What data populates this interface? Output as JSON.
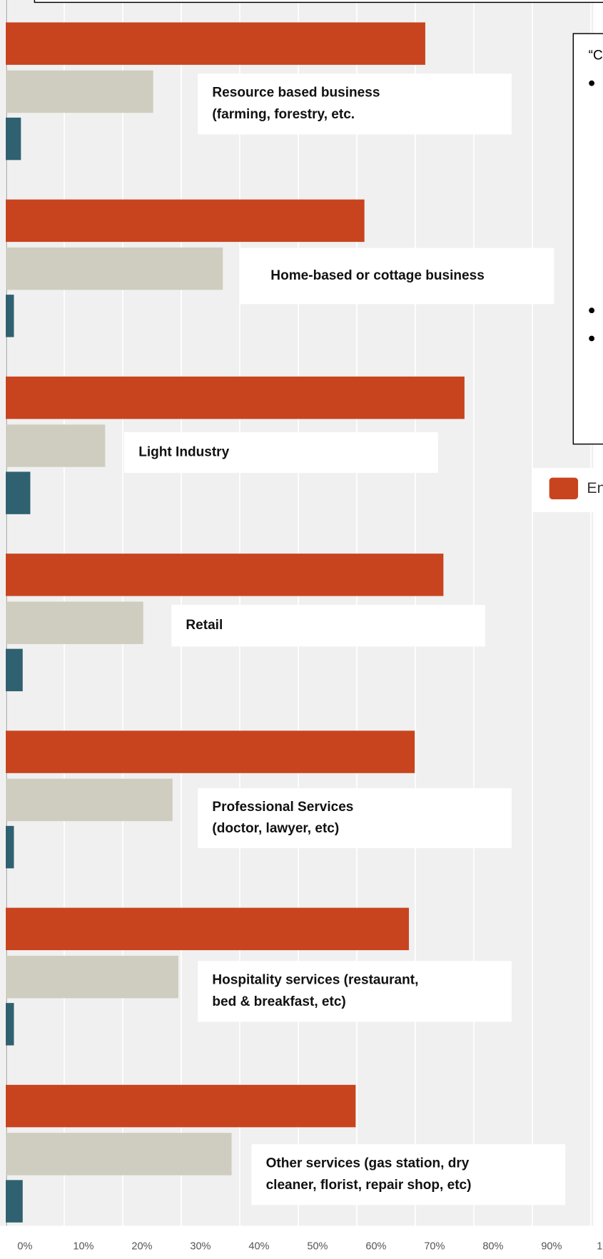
{
  "chart_data": {
    "type": "bar",
    "orientation": "horizontal",
    "categories": [
      [
        "Resource based business",
        "(farming, forestry, etc."
      ],
      [
        "Home-based or cottage business"
      ],
      [
        "Light Industry"
      ],
      [
        "Retail"
      ],
      [
        "Professional Services",
        "(doctor, lawyer, etc)"
      ],
      [
        "Hospitality services (restaurant,",
        "bed & breakfast, etc)"
      ],
      [
        "Other services (gas station, dry",
        "cleaner, florist, repair shop, etc)"
      ]
    ],
    "series": [
      {
        "name": "En",
        "color": "#c8441e",
        "values": [
          71.7,
          61.3,
          78.4,
          74.8,
          69.9,
          68.9,
          59.8
        ]
      },
      {
        "color": "#cfcdbf",
        "values": [
          25.2,
          37.1,
          17.0,
          23.5,
          28.5,
          29.5,
          38.6
        ]
      },
      {
        "color": "#2f6170",
        "values": [
          2.6,
          1.4,
          4.2,
          2.9,
          1.4,
          1.4,
          2.9
        ]
      }
    ],
    "xlim": [
      0,
      100
    ],
    "xticks": [
      {
        "value": 0,
        "label": "0%"
      },
      {
        "value": 10,
        "label": "10%"
      },
      {
        "value": 20,
        "label": "20%"
      },
      {
        "value": 30,
        "label": "30%"
      },
      {
        "value": 40,
        "label": "40%"
      },
      {
        "value": 50,
        "label": "50%"
      },
      {
        "value": 60,
        "label": "60%"
      },
      {
        "value": 70,
        "label": "70%"
      },
      {
        "value": 80,
        "label": "80%"
      },
      {
        "value": 90,
        "label": "90%"
      },
      {
        "value": 100,
        "label": "100%"
      }
    ],
    "grid": true,
    "annotation": "“C"
  }
}
